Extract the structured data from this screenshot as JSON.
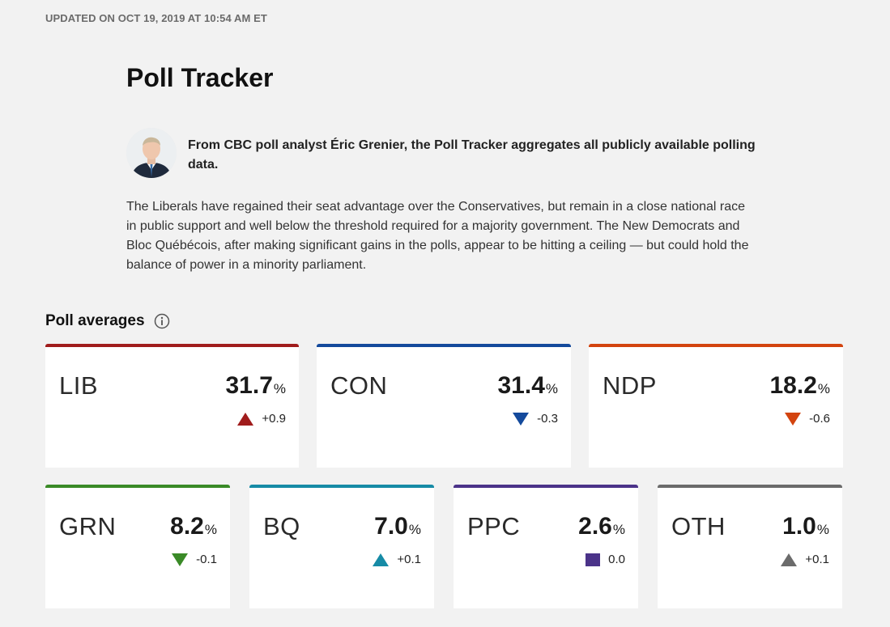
{
  "header": {
    "updated": "UPDATED ON OCT 19, 2019 AT 10:54 AM ET",
    "title": "Poll Tracker"
  },
  "intro": {
    "author_image": "author-photo",
    "lead": "From CBC poll analyst Éric Grenier, the Poll Tracker aggregates all publicly available polling data.",
    "body": "The Liberals have regained their seat advantage over the Conservatives, but remain in a close national race in public support and well below the threshold required for a majority government. The New Democrats and Bloc Québécois, after making significant gains in the polls, appear to be hitting a ceiling — but could hold the balance of power in a minority parliament."
  },
  "poll_averages": {
    "title": "Poll averages",
    "info_icon": "info-icon",
    "parties": [
      {
        "party": "LIB",
        "value": "31.7",
        "unit": "%",
        "change": "+0.9",
        "trend": "up",
        "color": "#a01c1c"
      },
      {
        "party": "CON",
        "value": "31.4",
        "unit": "%",
        "change": "-0.3",
        "trend": "down",
        "color": "#144a9c"
      },
      {
        "party": "NDP",
        "value": "18.2",
        "unit": "%",
        "change": "-0.6",
        "trend": "down",
        "color": "#d3440f"
      },
      {
        "party": "GRN",
        "value": "8.2",
        "unit": "%",
        "change": "-0.1",
        "trend": "down",
        "color": "#3a8a27"
      },
      {
        "party": "BQ",
        "value": "7.0",
        "unit": "%",
        "change": "+0.1",
        "trend": "up",
        "color": "#168ba6"
      },
      {
        "party": "PPC",
        "value": "2.6",
        "unit": "%",
        "change": "0.0",
        "trend": "flat",
        "color": "#4b3389"
      },
      {
        "party": "OTH",
        "value": "1.0",
        "unit": "%",
        "change": "+0.1",
        "trend": "up",
        "color": "#6b6b6b"
      }
    ]
  }
}
